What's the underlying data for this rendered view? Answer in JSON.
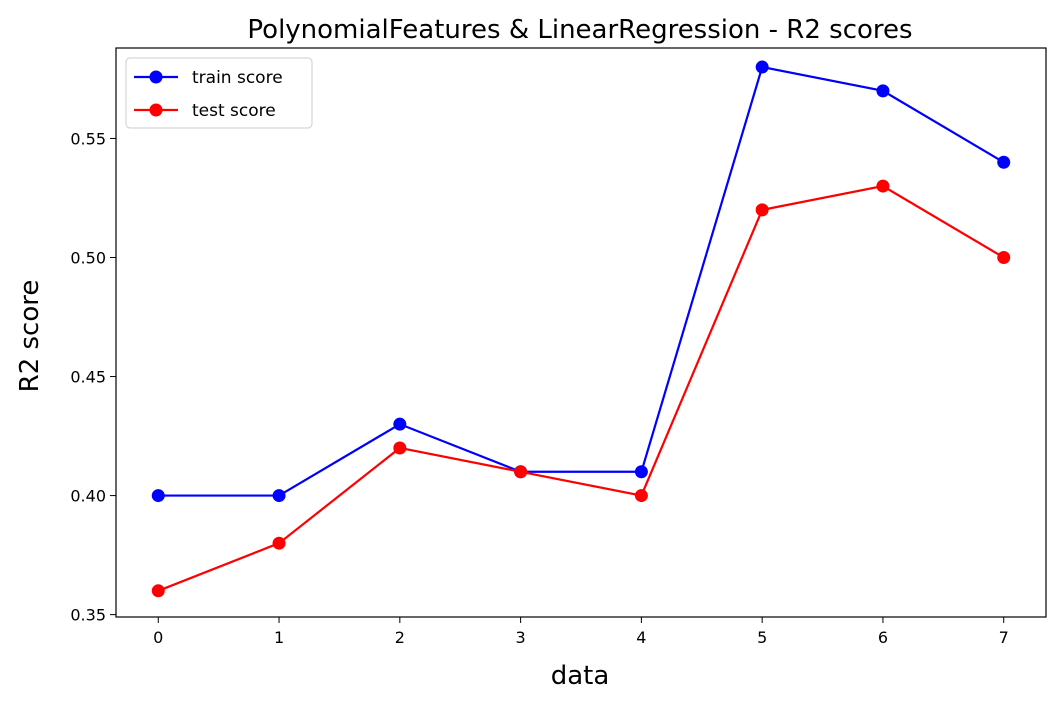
{
  "chart_data": {
    "type": "line",
    "title": "PolynomialFeatures & LinearRegression - R2 scores",
    "xlabel": "data",
    "ylabel": "R2 score",
    "x": [
      0,
      1,
      2,
      3,
      4,
      5,
      6,
      7
    ],
    "x_ticks": [
      "0",
      "1",
      "2",
      "3",
      "4",
      "5",
      "6",
      "7"
    ],
    "y_ticks": [
      "0.35",
      "0.40",
      "0.45",
      "0.50",
      "0.55"
    ],
    "y_tick_values": [
      0.35,
      0.4,
      0.45,
      0.5,
      0.55
    ],
    "xlim": [
      -0.35,
      7.35
    ],
    "ylim": [
      0.349,
      0.588
    ],
    "grid": false,
    "legend_position": "top-left",
    "series": [
      {
        "name": "train score",
        "color": "#0000ff",
        "values": [
          0.4,
          0.4,
          0.43,
          0.41,
          0.41,
          0.58,
          0.57,
          0.54
        ]
      },
      {
        "name": "test score",
        "color": "#ff0000",
        "values": [
          0.36,
          0.38,
          0.42,
          0.41,
          0.4,
          0.52,
          0.53,
          0.5
        ]
      }
    ]
  }
}
